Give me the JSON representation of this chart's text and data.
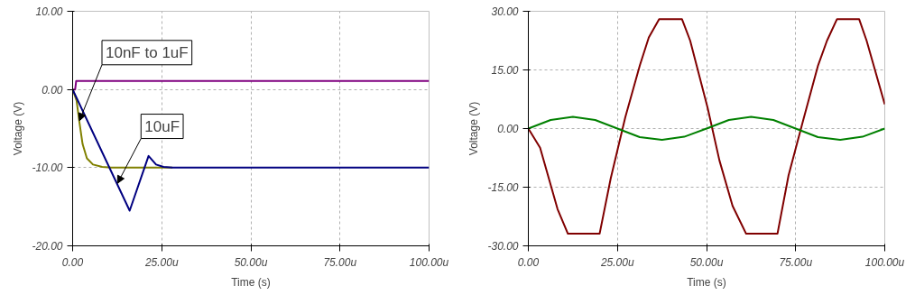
{
  "chart_data": [
    {
      "type": "line",
      "xlabel": "Time (s)",
      "ylabel": "Voltage (V)",
      "xlim": [
        0,
        100
      ],
      "ylim": [
        -20,
        10
      ],
      "xticks": [
        {
          "value": 0,
          "label": "0.00"
        },
        {
          "value": 25,
          "label": "25.00u"
        },
        {
          "value": 50,
          "label": "50.00u"
        },
        {
          "value": 75,
          "label": "75.00u"
        },
        {
          "value": 100,
          "label": "100.00u"
        }
      ],
      "yticks": [
        {
          "value": -20,
          "label": "-20.00"
        },
        {
          "value": -10,
          "label": "-10.00"
        },
        {
          "value": 0,
          "label": "0.00"
        },
        {
          "value": 10,
          "label": "10.00"
        }
      ],
      "grid": true,
      "line_style": "solid",
      "marker": "none",
      "series": [
        {
          "color": "#800080",
          "x": [
            0,
            0.7,
            1,
            100
          ],
          "values": [
            0,
            0,
            1.1,
            1.1
          ]
        },
        {
          "color": "#808000",
          "x": [
            0,
            1.1,
            1.9,
            2.8,
            4,
            5.7,
            8.3,
            10.8,
            28
          ],
          "values": [
            0,
            -1.4,
            -4.2,
            -7,
            -8.8,
            -9.6,
            -9.9,
            -10,
            -10
          ]
        },
        {
          "color": "#000080",
          "x": [
            0,
            16,
            21.3,
            23.4,
            25.5,
            28,
            100
          ],
          "values": [
            0,
            -15.5,
            -8.5,
            -9.6,
            -9.9,
            -10,
            -10
          ]
        }
      ],
      "annotations": [
        {
          "text": "10nF to 1uF",
          "x": 1.9,
          "y": -4
        },
        {
          "text": "10uF",
          "x": 12.6,
          "y": -12
        }
      ]
    },
    {
      "type": "line",
      "xlabel": "Time (s)",
      "ylabel": "Voltage (V)",
      "xlim": [
        0,
        100
      ],
      "ylim": [
        -30,
        30
      ],
      "xticks": [
        {
          "value": 0,
          "label": "0.00"
        },
        {
          "value": 25,
          "label": "25.00u"
        },
        {
          "value": 50,
          "label": "50.00u"
        },
        {
          "value": 75,
          "label": "75.00u"
        },
        {
          "value": 100,
          "label": "100.00u"
        }
      ],
      "yticks": [
        {
          "value": -30,
          "label": "-30.00"
        },
        {
          "value": -15,
          "label": "-15.00"
        },
        {
          "value": 0,
          "label": "0.00"
        },
        {
          "value": 15,
          "label": "15.00"
        },
        {
          "value": 30,
          "label": "30.00"
        }
      ],
      "grid": true,
      "line_style": "solid",
      "marker": "none",
      "series": [
        {
          "color": "#800000",
          "x": [
            0,
            3.3,
            8.2,
            11.1,
            20,
            23.1,
            27.2,
            31.3,
            33.8,
            36.7,
            43.1,
            45.4,
            50.3,
            53.6,
            57.3,
            61.1,
            69.9,
            73,
            77.1,
            81.3,
            83.8,
            86.6,
            92.8,
            94.9,
            100
          ],
          "values": [
            0,
            -4.9,
            -20.6,
            -26.9,
            -26.9,
            -12.8,
            2.9,
            16.2,
            23.3,
            28,
            28,
            22.5,
            5.3,
            -8.1,
            -19.8,
            -26.9,
            -26.9,
            -12,
            2.1,
            16.2,
            22.5,
            28,
            28,
            22.5,
            6.2
          ]
        },
        {
          "color": "#008000",
          "x": [
            0,
            6.25,
            12.5,
            18.75,
            25,
            31.25,
            37.5,
            43.75,
            50,
            56.25,
            62.5,
            68.75,
            75,
            81.25,
            87.5,
            93.75,
            100
          ],
          "values": [
            0,
            2.2,
            3,
            2.2,
            0,
            -2.2,
            -2.9,
            -2.1,
            0,
            2.2,
            3,
            2.2,
            0,
            -2.2,
            -2.9,
            -2.1,
            0
          ]
        }
      ]
    }
  ]
}
